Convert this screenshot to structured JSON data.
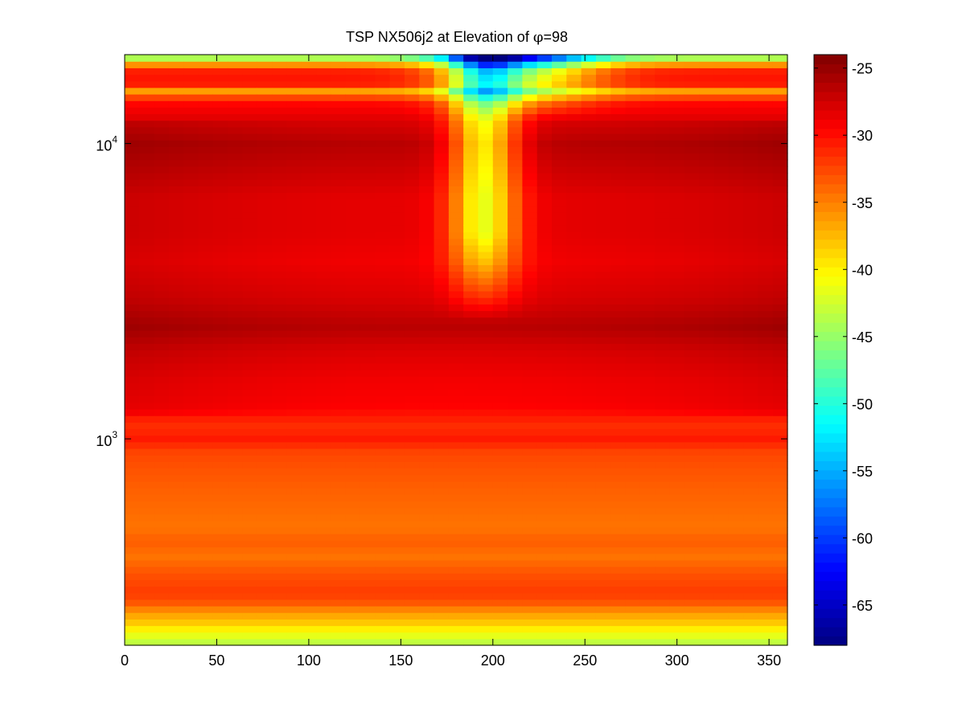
{
  "chart_data": {
    "type": "heatmap",
    "title": "TSP NX506j2 at Elevation of φ=98",
    "title_main": "TSP NX506j2 at Elevation of ",
    "title_symbol": "φ",
    "title_value": "=98",
    "xlabel": "",
    "ylabel": "",
    "xlim": [
      0,
      360
    ],
    "x_ticks": [
      0,
      50,
      100,
      150,
      200,
      250,
      300,
      350
    ],
    "x_tick_labels": [
      "0",
      "50",
      "100",
      "150",
      "200",
      "250",
      "300",
      "350"
    ],
    "y_scale": "log",
    "ylim": [
      200,
      20000
    ],
    "y_ticks": [
      1000,
      10000
    ],
    "y_tick_labels": [
      {
        "base": "10",
        "exp": "3"
      },
      {
        "base": "10",
        "exp": "4"
      }
    ],
    "colormap": "jet",
    "clim": [
      -68,
      -24
    ],
    "colorbar_ticks": [
      -25,
      -30,
      -35,
      -40,
      -45,
      -50,
      -55,
      -60,
      -65
    ],
    "colorbar_tick_labels": [
      "-25",
      "-30",
      "-35",
      "-40",
      "-45",
      "-50",
      "-55",
      "-60",
      "-65"
    ],
    "azimuth_step": 8,
    "frequency_profile": [
      {
        "f": 200,
        "level": -44
      },
      {
        "f": 220,
        "level": -41
      },
      {
        "f": 240,
        "level": -38
      },
      {
        "f": 260,
        "level": -36
      },
      {
        "f": 275,
        "level": -33.5
      },
      {
        "f": 300,
        "level": -32
      },
      {
        "f": 350,
        "level": -33
      },
      {
        "f": 400,
        "level": -34.5
      },
      {
        "f": 450,
        "level": -33.5
      },
      {
        "f": 500,
        "level": -34.5
      },
      {
        "f": 600,
        "level": -34
      },
      {
        "f": 700,
        "level": -33.5
      },
      {
        "f": 800,
        "level": -33
      },
      {
        "f": 900,
        "level": -32.5
      },
      {
        "f": 1000,
        "level": -30.5
      },
      {
        "f": 1100,
        "level": -31.5
      },
      {
        "f": 1300,
        "level": -29.5
      },
      {
        "f": 1600,
        "level": -29
      },
      {
        "f": 2000,
        "level": -28
      },
      {
        "f": 2400,
        "level": -26.5
      },
      {
        "f": 3000,
        "level": -28
      },
      {
        "f": 4000,
        "level": -29
      },
      {
        "f": 5000,
        "level": -28.5
      },
      {
        "f": 6500,
        "level": -28.5
      },
      {
        "f": 8000,
        "level": -27.5
      },
      {
        "f": 10000,
        "level": -26.5
      },
      {
        "f": 12000,
        "level": -28
      },
      {
        "f": 14000,
        "level": -30
      },
      {
        "f": 15000,
        "level": -37
      },
      {
        "f": 16000,
        "level": -30
      },
      {
        "f": 18000,
        "level": -31
      },
      {
        "f": 19000,
        "level": -40
      },
      {
        "f": 20000,
        "level": -48
      }
    ],
    "notch": {
      "center_deg": 195,
      "onset_hz": 2500,
      "full_hz": 5000,
      "width_deg": 18,
      "depth_db": 13,
      "top_center_deg": 215,
      "top_width_deg": 40,
      "top_depth_db": 18
    }
  }
}
